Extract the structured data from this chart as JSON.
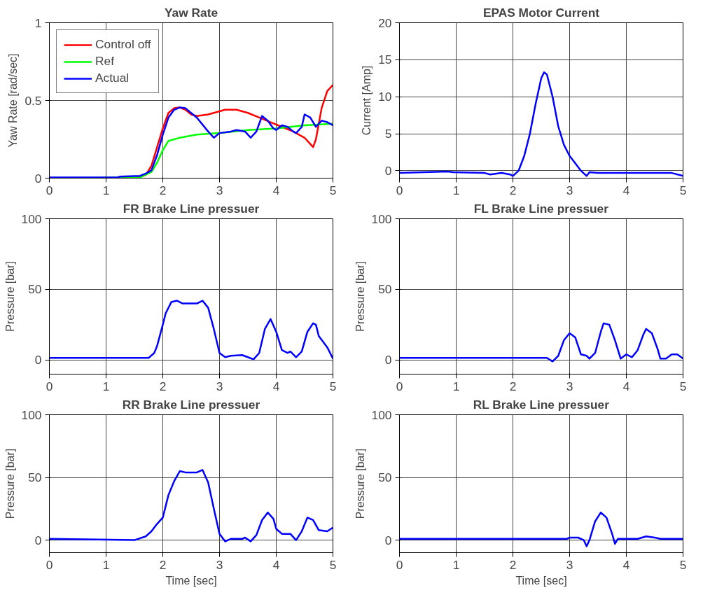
{
  "chart_data": [
    {
      "type": "line",
      "title": "Yaw Rate",
      "ylabel": "Yaw Rate [rad/sec]",
      "xlim": [
        0,
        5
      ],
      "xticks": [
        0,
        1,
        2,
        3,
        4,
        5
      ],
      "ylim": [
        0,
        1
      ],
      "yticks": [
        0,
        0.5,
        1
      ],
      "grid": true,
      "legend": "top left",
      "series": [
        {
          "name": "Control off",
          "color": "#ff0000",
          "x": [
            0,
            1.5,
            1.7,
            1.8,
            1.9,
            2.0,
            2.1,
            2.2,
            2.3,
            2.4,
            2.5,
            2.6,
            2.8,
            3.0,
            3.1,
            3.3,
            3.5,
            3.7,
            3.9,
            4.1,
            4.3,
            4.5,
            4.6,
            4.65,
            4.7,
            4.8,
            4.9,
            5.0
          ],
          "values": [
            0,
            0,
            0.02,
            0.08,
            0.2,
            0.32,
            0.42,
            0.45,
            0.455,
            0.44,
            0.41,
            0.4,
            0.41,
            0.43,
            0.44,
            0.44,
            0.42,
            0.39,
            0.36,
            0.33,
            0.3,
            0.26,
            0.22,
            0.2,
            0.25,
            0.45,
            0.56,
            0.6
          ]
        },
        {
          "name": "Ref",
          "color": "#00ff00",
          "x": [
            0,
            1.6,
            1.8,
            1.9,
            2.0,
            2.1,
            2.3,
            2.6,
            3.0,
            3.5,
            4.0,
            4.5,
            5.0
          ],
          "values": [
            0,
            0.005,
            0.04,
            0.1,
            0.18,
            0.24,
            0.26,
            0.28,
            0.29,
            0.31,
            0.32,
            0.34,
            0.35
          ]
        },
        {
          "name": "Actual",
          "color": "#0000ff",
          "x": [
            0,
            1.2,
            1.25,
            1.6,
            1.7,
            1.8,
            1.9,
            2.0,
            2.1,
            2.2,
            2.3,
            2.4,
            2.6,
            2.8,
            2.9,
            3.0,
            3.2,
            3.3,
            3.45,
            3.55,
            3.65,
            3.75,
            3.85,
            3.95,
            4.0,
            4.1,
            4.2,
            4.3,
            4.35,
            4.45,
            4.5,
            4.6,
            4.7,
            4.8,
            4.9,
            5.0
          ],
          "values": [
            0.005,
            0.005,
            0.01,
            0.015,
            0.03,
            0.05,
            0.15,
            0.28,
            0.39,
            0.44,
            0.455,
            0.45,
            0.39,
            0.3,
            0.26,
            0.29,
            0.3,
            0.31,
            0.3,
            0.26,
            0.3,
            0.4,
            0.37,
            0.32,
            0.31,
            0.34,
            0.33,
            0.3,
            0.29,
            0.33,
            0.41,
            0.39,
            0.33,
            0.37,
            0.36,
            0.34
          ]
        }
      ]
    },
    {
      "type": "line",
      "title": "EPAS Motor Current",
      "ylabel": "Current [Amp]",
      "xlim": [
        0,
        5
      ],
      "xticks": [
        0,
        1,
        2,
        3,
        4,
        5
      ],
      "ylim": [
        -1,
        20
      ],
      "yticks": [
        0,
        5,
        10,
        15,
        20
      ],
      "grid": true,
      "series": [
        {
          "color": "#0000ff",
          "x": [
            0,
            0.85,
            0.95,
            1.5,
            1.6,
            1.8,
            1.95,
            2.0,
            2.1,
            2.2,
            2.3,
            2.4,
            2.5,
            2.55,
            2.6,
            2.7,
            2.8,
            2.9,
            3.0,
            3.1,
            3.2,
            3.3,
            3.35,
            3.5,
            4.8,
            5.0
          ],
          "values": [
            -0.3,
            -0.1,
            -0.2,
            -0.3,
            -0.5,
            -0.3,
            -0.5,
            -0.7,
            0,
            2,
            5,
            9,
            12.5,
            13.3,
            13,
            10,
            6,
            3.5,
            2,
            1,
            0,
            -0.7,
            -0.2,
            -0.3,
            -0.3,
            -0.7
          ]
        }
      ]
    },
    {
      "type": "line",
      "title": "FR Brake Line pressuer",
      "ylabel": "Pressure [bar]",
      "xlim": [
        0,
        5
      ],
      "xticks": [
        0,
        1,
        2,
        3,
        4,
        5
      ],
      "ylim": [
        -10,
        100
      ],
      "yticks": [
        0,
        50,
        100
      ],
      "grid": true,
      "series": [
        {
          "color": "#0000ff",
          "x": [
            0,
            1.75,
            1.85,
            1.9,
            2.0,
            2.05,
            2.15,
            2.25,
            2.35,
            2.6,
            2.7,
            2.8,
            2.9,
            3.0,
            3.1,
            3.2,
            3.4,
            3.5,
            3.6,
            3.7,
            3.8,
            3.9,
            4.0,
            4.1,
            4.2,
            4.25,
            4.35,
            4.45,
            4.55,
            4.65,
            4.7,
            4.75,
            4.9,
            5.0
          ],
          "values": [
            1.5,
            1.5,
            5,
            10,
            25,
            33,
            41,
            42,
            40,
            40,
            42,
            37,
            22,
            5,
            2,
            3,
            3.5,
            2,
            0.5,
            5,
            22,
            29,
            20,
            7,
            5,
            6,
            2,
            6,
            20,
            26,
            25,
            17,
            9,
            1
          ]
        }
      ]
    },
    {
      "type": "line",
      "title": "FL Brake Line pressuer",
      "ylabel": "Pressure [bar]",
      "xlim": [
        0,
        5
      ],
      "xticks": [
        0,
        1,
        2,
        3,
        4,
        5
      ],
      "ylim": [
        -10,
        100
      ],
      "yticks": [
        0,
        50,
        100
      ],
      "grid": true,
      "series": [
        {
          "color": "#0000ff",
          "x": [
            0,
            2.6,
            2.7,
            2.8,
            2.9,
            3.0,
            3.1,
            3.2,
            3.3,
            3.35,
            3.45,
            3.55,
            3.6,
            3.7,
            3.8,
            3.9,
            4.0,
            4.1,
            4.2,
            4.3,
            4.35,
            4.45,
            4.55,
            4.6,
            4.7,
            4.8,
            4.9,
            5.0
          ],
          "values": [
            1.5,
            1.5,
            -1,
            3,
            14,
            19,
            16,
            4,
            3,
            1,
            5,
            20,
            26,
            25,
            14,
            1,
            4,
            2,
            7,
            18,
            22,
            19,
            8,
            1,
            1,
            4,
            4,
            1
          ]
        }
      ]
    },
    {
      "type": "line",
      "title": "RR Brake Line pressuer",
      "ylabel": "Pressure [bar]",
      "xlabel": "Time [sec]",
      "xlim": [
        0,
        5
      ],
      "xticks": [
        0,
        1,
        2,
        3,
        4,
        5
      ],
      "ylim": [
        -10,
        100
      ],
      "yticks": [
        0,
        50,
        100
      ],
      "grid": true,
      "series": [
        {
          "color": "#0000ff",
          "x": [
            0,
            1.5,
            1.7,
            1.8,
            1.9,
            2.0,
            2.1,
            2.2,
            2.3,
            2.4,
            2.6,
            2.7,
            2.8,
            2.9,
            3.0,
            3.1,
            3.2,
            3.4,
            3.45,
            3.55,
            3.65,
            3.75,
            3.85,
            3.95,
            4.0,
            4.1,
            4.25,
            4.35,
            4.45,
            4.55,
            4.65,
            4.75,
            4.9,
            5.0
          ],
          "values": [
            1,
            0,
            3,
            7,
            13,
            18,
            36,
            47,
            55,
            54,
            54,
            56,
            46,
            25,
            5,
            -1,
            1,
            1,
            2,
            -1,
            4,
            16,
            22,
            17,
            9,
            5,
            5,
            0,
            7,
            18,
            16,
            8,
            7,
            10
          ]
        }
      ]
    },
    {
      "type": "line",
      "title": "RL Brake Line pressuer",
      "ylabel": "Pressure [bar]",
      "xlabel": "Time [sec]",
      "xlim": [
        0,
        5
      ],
      "xticks": [
        0,
        1,
        2,
        3,
        4,
        5
      ],
      "ylim": [
        -10,
        100
      ],
      "yticks": [
        0,
        50,
        100
      ],
      "grid": true,
      "series": [
        {
          "color": "#0000ff",
          "x": [
            0,
            2.95,
            3.0,
            3.15,
            3.25,
            3.3,
            3.35,
            3.45,
            3.55,
            3.65,
            3.75,
            3.8,
            3.85,
            4.2,
            4.35,
            4.5,
            4.6,
            5.0
          ],
          "values": [
            1,
            1,
            2,
            2,
            0,
            -5,
            0,
            15,
            22,
            18,
            5,
            -3,
            1,
            1,
            3,
            2,
            1,
            1
          ]
        }
      ]
    }
  ]
}
